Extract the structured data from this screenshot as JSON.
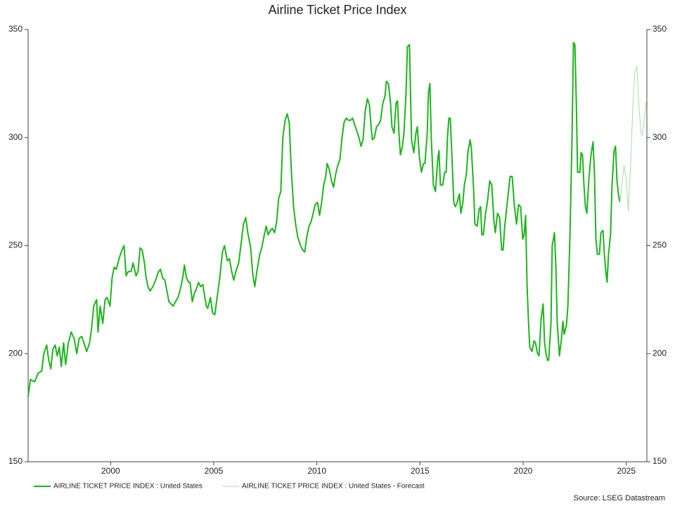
{
  "chart_data": {
    "type": "line",
    "title": "Airline Ticket Price Index",
    "xlim": [
      1996,
      2026
    ],
    "xticks": [
      2000,
      2005,
      2010,
      2015,
      2020,
      2025
    ],
    "ylim": [
      150,
      350
    ],
    "yticks": [
      150,
      200,
      250,
      300,
      350
    ],
    "y2lim": [
      150,
      350
    ],
    "y2ticks": [
      150,
      200,
      250,
      300,
      350
    ],
    "grid": false,
    "legend": "bottom-left",
    "source": "Source: LSEG Datastream",
    "series": [
      {
        "name": "AIRLINE TICKET PRICE INDEX : United States",
        "color": "#1db41d",
        "width": 2,
        "x": [
          1996.0,
          1996.11,
          1996.32,
          1996.49,
          1996.66,
          1996.76,
          1996.9,
          1997.0,
          1997.1,
          1997.2,
          1997.31,
          1997.41,
          1997.51,
          1997.61,
          1997.72,
          1997.82,
          1997.95,
          1998.09,
          1998.23,
          1998.36,
          1998.47,
          1998.6,
          1998.74,
          1998.84,
          1998.98,
          1999.08,
          1999.18,
          1999.32,
          1999.39,
          1999.49,
          1999.62,
          1999.73,
          1999.83,
          1999.97,
          2000.07,
          2000.17,
          2000.27,
          2000.41,
          2000.55,
          2000.65,
          2000.75,
          2000.85,
          2000.99,
          2001.09,
          2001.23,
          2001.33,
          2001.43,
          2001.53,
          2001.64,
          2001.71,
          2001.81,
          2001.91,
          2002.05,
          2002.18,
          2002.32,
          2002.42,
          2002.52,
          2002.63,
          2002.73,
          2002.83,
          2002.93,
          2003.03,
          2003.14,
          2003.27,
          2003.41,
          2003.51,
          2003.58,
          2003.68,
          2003.79,
          2003.85,
          2003.96,
          2004.06,
          2004.16,
          2004.26,
          2004.36,
          2004.47,
          2004.57,
          2004.64,
          2004.71,
          2004.84,
          2004.94,
          2005.05,
          2005.15,
          2005.29,
          2005.42,
          2005.52,
          2005.66,
          2005.76,
          2005.87,
          2005.97,
          2006.07,
          2006.21,
          2006.34,
          2006.44,
          2006.55,
          2006.65,
          2006.79,
          2006.89,
          2006.99,
          2007.09,
          2007.23,
          2007.33,
          2007.43,
          2007.54,
          2007.64,
          2007.74,
          2007.84,
          2007.95,
          2008.05,
          2008.15,
          2008.25,
          2008.35,
          2008.46,
          2008.56,
          2008.66,
          2008.76,
          2008.87,
          2008.97,
          2009.07,
          2009.21,
          2009.31,
          2009.41,
          2009.51,
          2009.62,
          2009.72,
          2009.82,
          2009.92,
          2010.03,
          2010.13,
          2010.23,
          2010.33,
          2010.43,
          2010.5,
          2010.61,
          2010.71,
          2010.81,
          2010.91,
          2011.01,
          2011.12,
          2011.22,
          2011.32,
          2011.42,
          2011.53,
          2011.63,
          2011.73,
          2011.83,
          2011.94,
          2012.04,
          2012.14,
          2012.24,
          2012.34,
          2012.45,
          2012.55,
          2012.62,
          2012.69,
          2012.79,
          2012.89,
          2012.99,
          2013.09,
          2013.2,
          2013.3,
          2013.37,
          2013.47,
          2013.57,
          2013.64,
          2013.74,
          2013.84,
          2013.91,
          2013.98,
          2014.05,
          2014.15,
          2014.22,
          2014.32,
          2014.39,
          2014.49,
          2014.59,
          2014.7,
          2014.8,
          2014.87,
          2014.97,
          2015.07,
          2015.17,
          2015.24,
          2015.35,
          2015.41,
          2015.48,
          2015.55,
          2015.65,
          2015.75,
          2015.86,
          2015.92,
          2015.99,
          2016.1,
          2016.2,
          2016.27,
          2016.33,
          2016.4,
          2016.47,
          2016.54,
          2016.64,
          2016.71,
          2016.81,
          2016.91,
          2016.98,
          2017.08,
          2017.15,
          2017.25,
          2017.32,
          2017.43,
          2017.49,
          2017.6,
          2017.66,
          2017.77,
          2017.87,
          2017.94,
          2018.0,
          2018.07,
          2018.18,
          2018.28,
          2018.38,
          2018.48,
          2018.58,
          2018.65,
          2018.76,
          2018.86,
          2018.96,
          2019.03,
          2019.1,
          2019.23,
          2019.37,
          2019.47,
          2019.57,
          2019.68,
          2019.78,
          2019.88,
          2019.98,
          2020.05,
          2020.12,
          2020.19,
          2020.26,
          2020.32,
          2020.43,
          2020.53,
          2020.6,
          2020.7,
          2020.77,
          2020.87,
          2020.97,
          2021.04,
          2021.11,
          2021.18,
          2021.24,
          2021.35,
          2021.41,
          2021.52,
          2021.59,
          2021.65,
          2021.76,
          2021.86,
          2021.93,
          2021.99,
          2022.1,
          2022.17,
          2022.27,
          2022.37,
          2022.44,
          2022.51,
          2022.58,
          2022.64,
          2022.75,
          2022.81,
          2022.88,
          2022.95,
          2023.02,
          2023.09,
          2023.19,
          2023.29,
          2023.39,
          2023.46,
          2023.53,
          2023.6,
          2023.7,
          2023.77,
          2023.87,
          2023.94,
          2024.01,
          2024.07,
          2024.14,
          2024.24,
          2024.31,
          2024.41,
          2024.48,
          2024.55,
          2024.62,
          2024.69
        ],
        "values": [
          180,
          188,
          187,
          191,
          192,
          200,
          204,
          197,
          193,
          202,
          204,
          199,
          203,
          194,
          205,
          195,
          205,
          210,
          207,
          200,
          207,
          208,
          204,
          201,
          205,
          212,
          222,
          225,
          210,
          222,
          214,
          225,
          226,
          222,
          235,
          240,
          239,
          244,
          248,
          250,
          236,
          238,
          238,
          242,
          236,
          238,
          249,
          248,
          242,
          236,
          231,
          229,
          231,
          234,
          238,
          239,
          235,
          234,
          229,
          224,
          223,
          222,
          224,
          226,
          231,
          236,
          241,
          235,
          233,
          233,
          224,
          228,
          230,
          233,
          231,
          232,
          226,
          222,
          221,
          226,
          219,
          218,
          225,
          235,
          247,
          250,
          243,
          244,
          238,
          234,
          238,
          242,
          252,
          260,
          263,
          256,
          249,
          237,
          231,
          238,
          246,
          249,
          254,
          259,
          255,
          257,
          258,
          256,
          261,
          272,
          275,
          300,
          308,
          311,
          307,
          285,
          268,
          260,
          254,
          250,
          248,
          247,
          254,
          259,
          261,
          265,
          269,
          270,
          264,
          270,
          278,
          282,
          288,
          285,
          280,
          277,
          283,
          287,
          290,
          300,
          307,
          309,
          308,
          308,
          309,
          306,
          303,
          300,
          296,
          299,
          312,
          318,
          315,
          306,
          299,
          300,
          305,
          306,
          308,
          316,
          319,
          326,
          325,
          316,
          305,
          302,
          316,
          317,
          302,
          292,
          296,
          302,
          320,
          342,
          343,
          299,
          293,
          302,
          305,
          291,
          284,
          288,
          288,
          302,
          321,
          325,
          299,
          278,
          275,
          290,
          294,
          278,
          278,
          284,
          284,
          300,
          309,
          309,
          293,
          270,
          268,
          270,
          274,
          265,
          270,
          278,
          283,
          293,
          299,
          295,
          276,
          260,
          259,
          267,
          268,
          255,
          255,
          265,
          271,
          280,
          278,
          262,
          256,
          265,
          263,
          248,
          248,
          258,
          270,
          282,
          282,
          269,
          260,
          269,
          268,
          253,
          255,
          264,
          232,
          215,
          203,
          201,
          206,
          205,
          200,
          199,
          216,
          223,
          205,
          200,
          197,
          197,
          214,
          250,
          256,
          240,
          215,
          199,
          207,
          215,
          209,
          213,
          222,
          254,
          299,
          344,
          343,
          316,
          284,
          284,
          293,
          292,
          278,
          268,
          265,
          281,
          292,
          298,
          283,
          253,
          246,
          246,
          256,
          257,
          246,
          238,
          233,
          246,
          255,
          278,
          294,
          296,
          280,
          274,
          270
        ]
      },
      {
        "name": "AIRLINE TICKET PRICE INDEX : United States - Forecast",
        "color": "#a6dca6",
        "width": 1,
        "x": [
          2024.69,
          2024.79,
          2024.89,
          2025.0,
          2025.1,
          2025.2,
          2025.31,
          2025.41,
          2025.51,
          2025.61,
          2025.72,
          2025.78,
          2025.89,
          2025.99
        ],
        "values": [
          270,
          278,
          287,
          281,
          266,
          285,
          312,
          330,
          333,
          315,
          302,
          301,
          310,
          318
        ]
      }
    ]
  }
}
